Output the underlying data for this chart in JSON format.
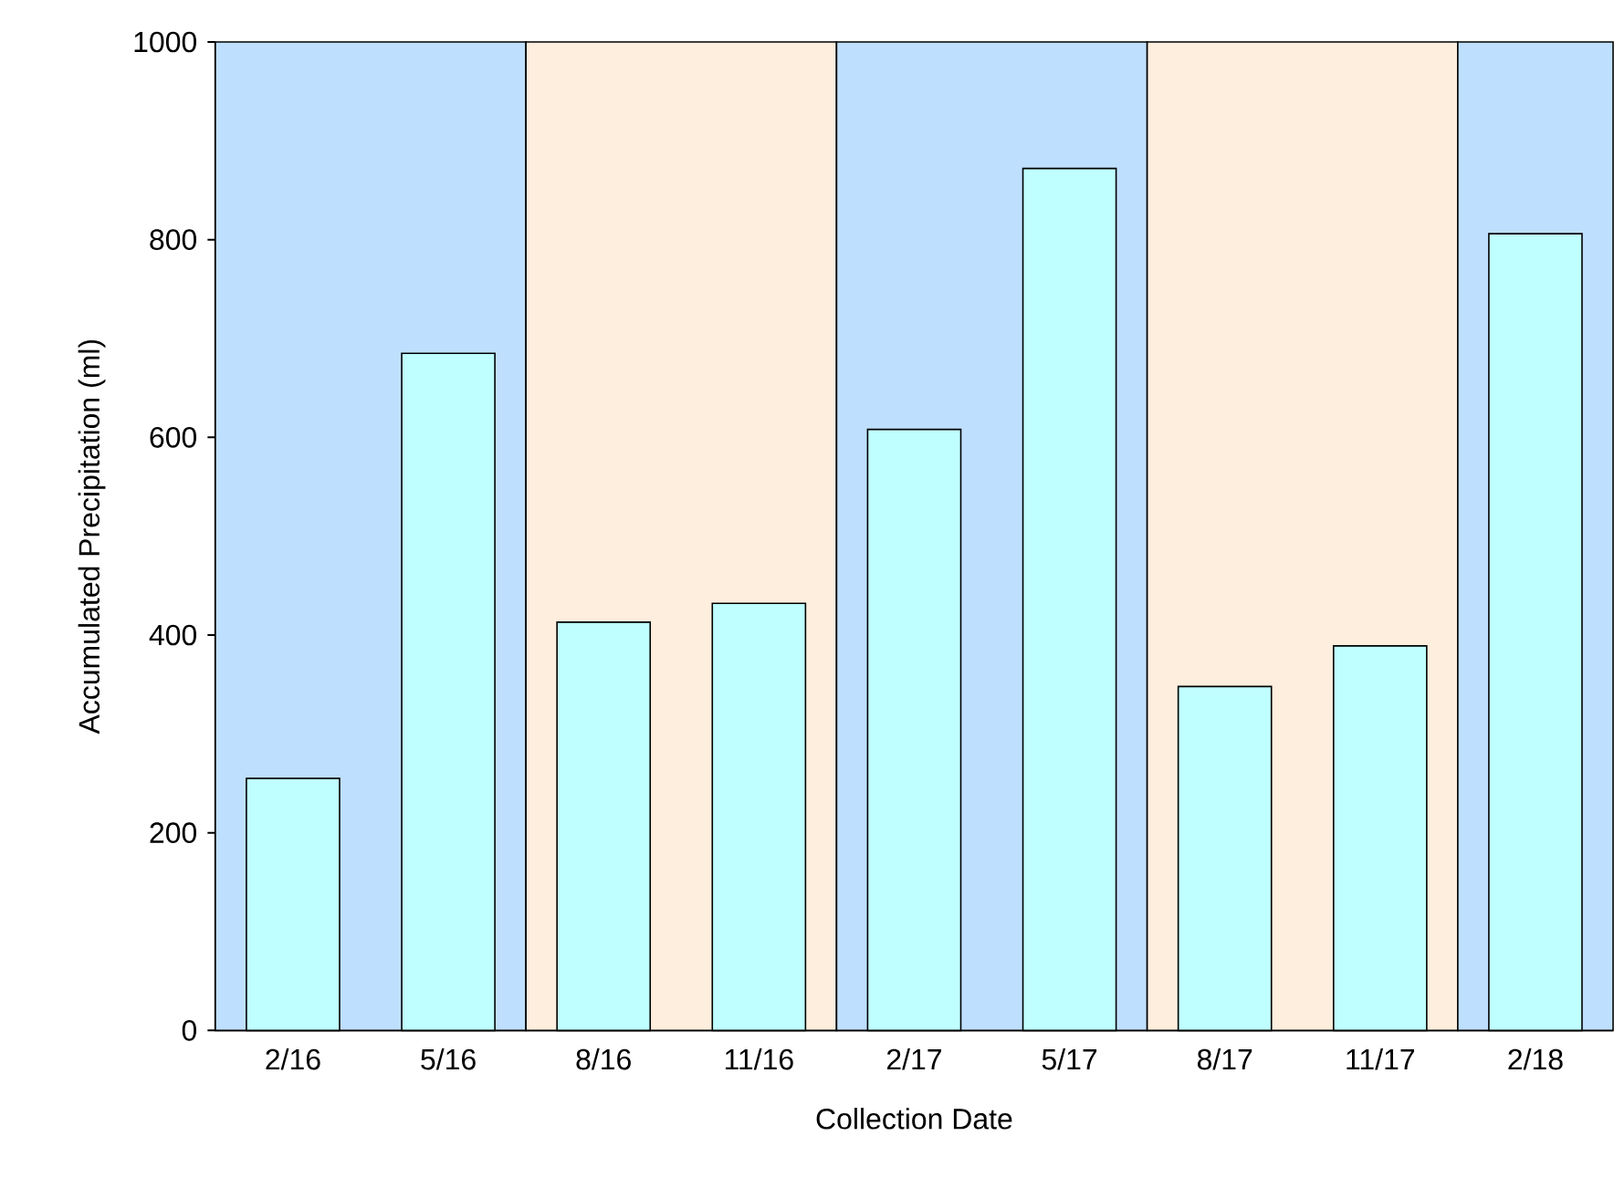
{
  "chart_data": {
    "type": "bar",
    "xlabel": "Collection Date",
    "ylabel": "Accumulated Precipitation (ml)",
    "categories": [
      "2/16",
      "5/16",
      "8/16",
      "11/16",
      "2/17",
      "5/17",
      "8/17",
      "11/17",
      "2/18"
    ],
    "values": [
      255,
      685,
      413,
      432,
      608,
      872,
      348,
      389,
      806
    ],
    "color": "#bfffff",
    "ylim": [
      0,
      1000
    ],
    "yticks": [
      0,
      200,
      400,
      600,
      800,
      1000
    ],
    "bands": [
      {
        "axis": "x",
        "from": "2/16",
        "to": "5/16",
        "color": "#bfdfff"
      },
      {
        "axis": "x",
        "from": "8/16",
        "to": "11/16",
        "color": "#fdeede"
      },
      {
        "axis": "x",
        "from": "2/17",
        "to": "5/17",
        "color": "#bfdfff"
      },
      {
        "axis": "x",
        "from": "8/17",
        "to": "11/17",
        "color": "#fdeede"
      },
      {
        "axis": "x",
        "from": "2/18",
        "to": "2/18",
        "color": "#bfdfff"
      }
    ],
    "grid": false
  }
}
